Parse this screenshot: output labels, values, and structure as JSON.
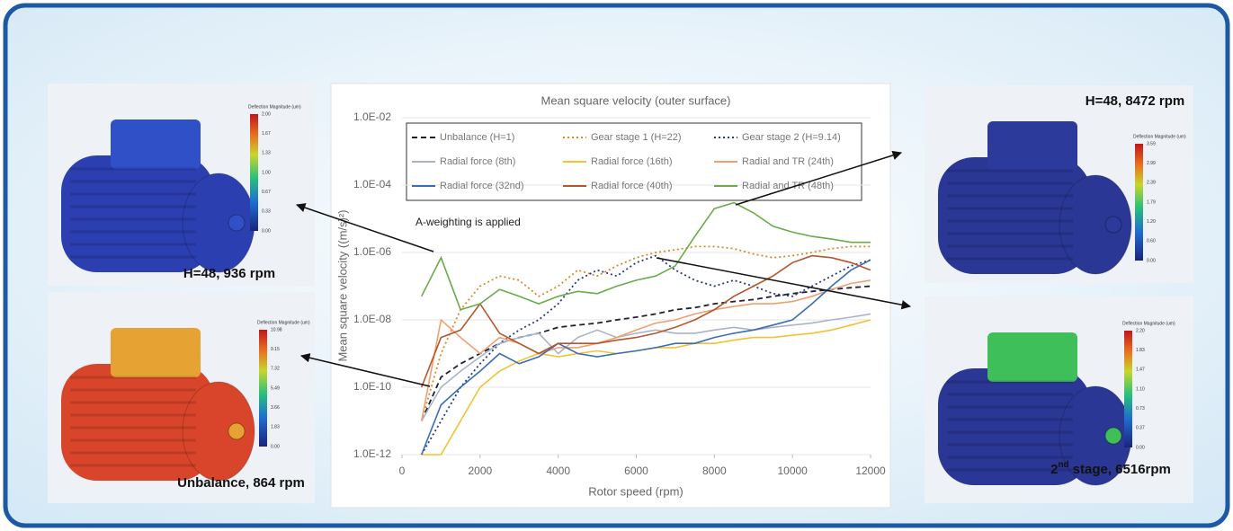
{
  "chart_data": {
    "type": "line",
    "title": "Mean square velocity (outer surface)",
    "x_label": "Rotor speed (rpm)",
    "y_label": "Mean square velocity ((m/s)²)",
    "annotation": "A-weighting is applied",
    "log_y": true,
    "grid": true,
    "legend": "top",
    "xlim": [
      0,
      12000
    ],
    "xticks": [
      0,
      2000,
      4000,
      6000,
      8000,
      10000,
      12000
    ],
    "ylim": [
      1e-12,
      0.01
    ],
    "yticks": [
      {
        "value": 1e-12,
        "label": "1.0E-12"
      },
      {
        "value": 1e-10,
        "label": "1.0E-10"
      },
      {
        "value": 1e-08,
        "label": "1.0E-08"
      },
      {
        "value": 1e-06,
        "label": "1.0E-06"
      },
      {
        "value": 0.0001,
        "label": "1.0E-04"
      },
      {
        "value": 0.01,
        "label": "1.0E-02"
      }
    ],
    "x": [
      500,
      1000,
      1500,
      2000,
      2500,
      3000,
      3500,
      4000,
      4500,
      5000,
      5500,
      6000,
      6500,
      7000,
      7500,
      8000,
      8500,
      9000,
      9500,
      10000,
      10500,
      11000,
      11500,
      12000
    ],
    "series": [
      {
        "name": "Unbalance (H=1)",
        "color": "#1f1f3a",
        "dash": "dash",
        "values": [
          1e-11,
          2e-10,
          5e-10,
          1e-09,
          2e-09,
          3e-09,
          4e-09,
          6e-09,
          7e-09,
          8e-09,
          1e-08,
          1.2e-08,
          1.5e-08,
          2e-08,
          2.3e-08,
          3e-08,
          3.5e-08,
          4e-08,
          5e-08,
          6e-08,
          7e-08,
          8e-08,
          9e-08,
          1e-07
        ]
      },
      {
        "name": "Gear stage 1 (H=22)",
        "color": "#d9892a",
        "dash": "dot",
        "values": [
          1e-11,
          1e-09,
          2e-08,
          1e-07,
          2e-07,
          1.5e-07,
          5e-08,
          1e-07,
          3e-07,
          2e-07,
          4e-07,
          7e-07,
          1e-06,
          1.2e-06,
          1.5e-06,
          1.5e-06,
          1.3e-06,
          9e-07,
          7e-07,
          8e-07,
          1e-06,
          1.3e-06,
          1.5e-06,
          1.5e-06
        ]
      },
      {
        "name": "Gear stage 2 (H=9.14)",
        "color": "#2b3a80",
        "dash": "dot",
        "values": [
          1e-12,
          1e-11,
          1e-10,
          5e-10,
          2e-09,
          5e-09,
          1e-08,
          3e-08,
          1.5e-07,
          3e-07,
          2e-07,
          5e-07,
          8e-07,
          3e-07,
          1.5e-07,
          1e-07,
          1.5e-07,
          1e-07,
          6e-08,
          5e-08,
          1e-07,
          2e-07,
          4e-07,
          6e-07
        ]
      },
      {
        "name": "Radial force (8th)",
        "color": "#a9b4c8",
        "dash": "solid",
        "values": [
          1e-11,
          1e-10,
          3e-10,
          8e-10,
          2e-09,
          3e-09,
          4e-09,
          1e-09,
          3e-09,
          5e-09,
          3e-09,
          4e-09,
          5e-09,
          4e-09,
          4e-09,
          5e-09,
          6e-09,
          5e-09,
          6e-09,
          7e-09,
          8e-09,
          1e-08,
          1.2e-08,
          1.5e-08
        ]
      },
      {
        "name": "Radial force (16th)",
        "color": "#f2c232",
        "dash": "solid",
        "values": [
          1e-12,
          1e-12,
          1e-11,
          1e-10,
          3e-10,
          6e-10,
          1e-09,
          8e-10,
          1e-09,
          1.2e-09,
          1e-09,
          1.2e-09,
          1.5e-09,
          1.5e-09,
          2e-09,
          2e-09,
          2.5e-09,
          3e-09,
          3e-09,
          3.5e-09,
          4e-09,
          5e-09,
          7e-09,
          1e-08
        ]
      },
      {
        "name": "Radial and TR (24th)",
        "color": "#f0a070",
        "dash": "solid",
        "values": [
          1e-11,
          1e-08,
          3e-09,
          1e-09,
          3e-09,
          2e-09,
          1e-09,
          1.5e-09,
          1.5e-09,
          2e-09,
          3e-09,
          5e-09,
          8e-09,
          1e-08,
          1.5e-08,
          2e-08,
          2.5e-08,
          3e-08,
          3e-08,
          3.5e-08,
          5e-08,
          8e-08,
          1.2e-07,
          1.5e-07
        ]
      },
      {
        "name": "Radial force (32nd)",
        "color": "#3a6db5",
        "dash": "solid",
        "values": [
          1e-12,
          3e-11,
          1e-10,
          3e-10,
          1e-09,
          5e-10,
          8e-10,
          2e-09,
          1e-09,
          8e-10,
          1e-09,
          1.2e-09,
          1.5e-09,
          2e-09,
          2e-09,
          3e-09,
          4e-09,
          5e-09,
          7e-09,
          1e-08,
          3e-08,
          1e-07,
          3e-07,
          6e-07
        ]
      },
      {
        "name": "Radial force (40th)",
        "color": "#b5562a",
        "dash": "solid",
        "values": [
          1e-10,
          3e-09,
          5e-09,
          3e-08,
          4e-09,
          2e-09,
          1e-09,
          2e-09,
          2e-09,
          2e-09,
          2.5e-09,
          3e-09,
          4e-09,
          6e-09,
          1e-08,
          2e-08,
          5e-08,
          1e-07,
          2e-07,
          5e-07,
          8e-07,
          7e-07,
          5e-07,
          3e-07
        ]
      },
      {
        "name": "Radial and TR (48th)",
        "color": "#6aab4a",
        "dash": "solid",
        "values": [
          5e-08,
          7e-07,
          2e-08,
          3e-08,
          8e-08,
          5e-08,
          3e-08,
          5e-08,
          7e-08,
          6e-08,
          1e-07,
          1.5e-07,
          2e-07,
          4e-07,
          3e-06,
          2e-05,
          3e-05,
          1.5e-05,
          6e-06,
          4e-06,
          3e-06,
          2.5e-06,
          2e-06,
          2e-06
        ]
      }
    ]
  },
  "panels": [
    {
      "caption": [
        "H=48, 936 rpm"
      ],
      "colorbar": {
        "title": "Deflection Magnitude (um)",
        "ticks": [
          "2.00",
          "1.67",
          "1.33",
          "1.00",
          "0.67",
          "0.33",
          "0.00"
        ]
      }
    },
    {
      "caption": [
        "Unbalance, 864 rpm"
      ],
      "colorbar": {
        "title": "Deflection Magnitude (um)",
        "ticks": [
          "10.98",
          "9.15",
          "7.32",
          "5.49",
          "3.66",
          "1.83",
          "0.00"
        ]
      }
    },
    {
      "caption": [
        "H=48, 8472 rpm"
      ],
      "colorbar": {
        "title": "Deflection Magnitude (um)",
        "ticks": [
          "3.59",
          "2.99",
          "2.39",
          "1.79",
          "1.20",
          "0.60",
          "0.00"
        ]
      }
    },
    {
      "caption": [
        "2",
        "nd",
        "stage, 6516rpm"
      ],
      "colorbar": {
        "title": "Deflection Magnitude (um)",
        "ticks": [
          "2.20",
          "1.83",
          "1.47",
          "1.10",
          "0.73",
          "0.37",
          "0.00"
        ]
      }
    }
  ]
}
